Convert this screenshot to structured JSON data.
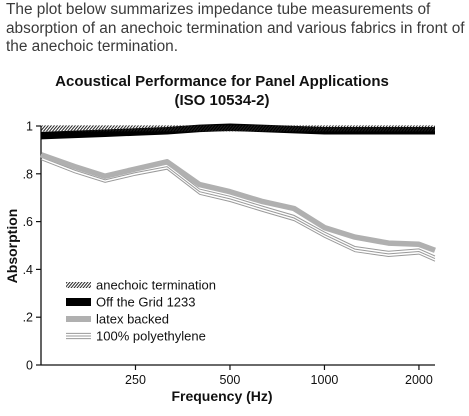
{
  "intro_text": "The plot below summarizes impedance tube measurements of absorption of an anechoic termination and various fabrics in front of the anechoic termination.",
  "chart_data": {
    "type": "line",
    "title": "Acoustical Performance for Panel Applications",
    "subtitle": "(ISO 10534-2)",
    "xlabel": "Frequency (Hz)",
    "ylabel": "Absorption",
    "xlim": [
      125,
      2250
    ],
    "ylim": [
      0,
      1.0
    ],
    "x_ticks": [
      250,
      500,
      1000,
      2000
    ],
    "x_tick_labels": [
      "250",
      "500",
      "1000",
      "2000"
    ],
    "y_ticks": [
      0,
      0.2,
      0.4,
      0.6,
      0.8,
      1.0
    ],
    "y_tick_labels": [
      "0",
      ".2",
      ".4",
      ".6",
      ".8",
      "1"
    ],
    "grid": false,
    "legend_position": "lower-left",
    "series": [
      {
        "name": "anechoic termination",
        "style": "hatched",
        "color": "#333333",
        "x": [
          125,
          160,
          200,
          250,
          315,
          400,
          500,
          630,
          800,
          1000,
          1250,
          1600,
          2000,
          2250
        ],
        "y": [
          0.99,
          0.99,
          0.99,
          0.99,
          0.99,
          0.99,
          0.99,
          0.99,
          0.99,
          0.99,
          0.99,
          0.99,
          0.99,
          0.99
        ]
      },
      {
        "name": "Off the Grid 1233",
        "style": "thick-black",
        "color": "#000000",
        "x": [
          125,
          160,
          200,
          250,
          315,
          400,
          500,
          630,
          800,
          1000,
          1250,
          1600,
          2000,
          2250
        ],
        "y": [
          0.96,
          0.965,
          0.97,
          0.975,
          0.98,
          0.99,
          0.995,
          0.99,
          0.985,
          0.98,
          0.98,
          0.98,
          0.98,
          0.98
        ]
      },
      {
        "name": "latex backed",
        "style": "thick-gray",
        "color": "#b0b0b0",
        "x": [
          125,
          160,
          200,
          250,
          315,
          400,
          500,
          630,
          800,
          1000,
          1250,
          1600,
          2000,
          2250
        ],
        "y": [
          0.88,
          0.83,
          0.79,
          0.82,
          0.85,
          0.755,
          0.725,
          0.685,
          0.655,
          0.575,
          0.535,
          0.51,
          0.505,
          0.48
        ]
      },
      {
        "name": "100% polyethylene",
        "style": "triple-line",
        "color": "#9a9a9a",
        "x": [
          125,
          160,
          200,
          250,
          315,
          400,
          500,
          630,
          800,
          1000,
          1250,
          1600,
          2000,
          2250
        ],
        "y": [
          0.87,
          0.815,
          0.775,
          0.805,
          0.83,
          0.725,
          0.695,
          0.655,
          0.615,
          0.545,
          0.485,
          0.465,
          0.475,
          0.445
        ]
      }
    ]
  }
}
